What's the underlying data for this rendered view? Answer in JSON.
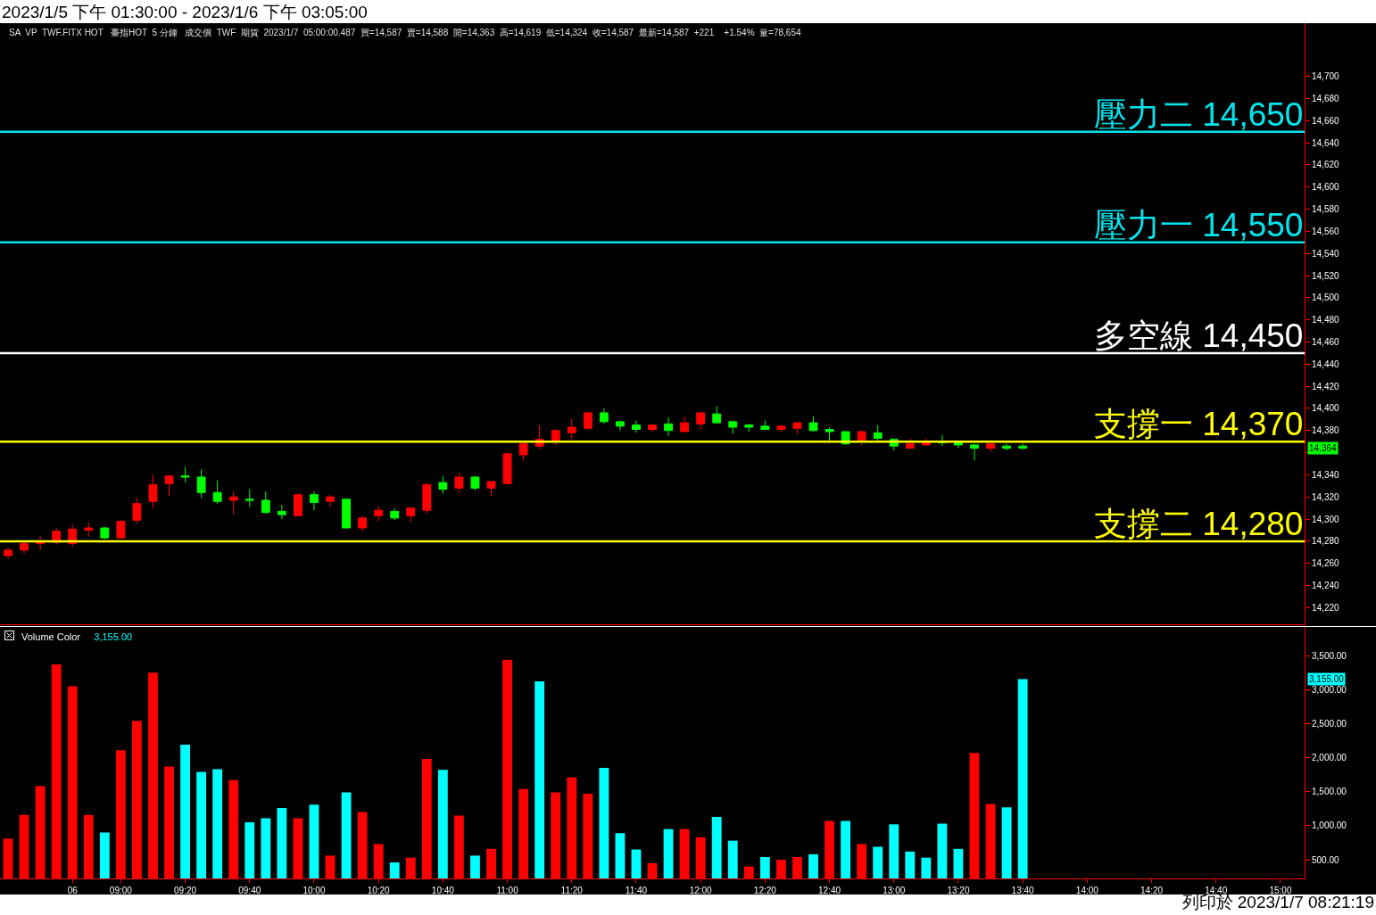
{
  "chart_data": [
    {
      "type": "candlestick",
      "title": "2023/1/5 下午 01:30:00 - 2023/1/6 下午 03:05:00",
      "categories": [
        null,
        null,
        null,
        null,
        null,
        null,
        null,
        null,
        null,
        null,
        null,
        null,
        null,
        null,
        null,
        null,
        null,
        null,
        null,
        null,
        null,
        null,
        null,
        null,
        null,
        null,
        null,
        null,
        null,
        null,
        null,
        null,
        null,
        null,
        null,
        null,
        null,
        null,
        null,
        null,
        null,
        null,
        null,
        null,
        null,
        null,
        null,
        null,
        null,
        null,
        null,
        null,
        null,
        null,
        null,
        null,
        null,
        null,
        null,
        null,
        null,
        null,
        null,
        null,
        null,
        null,
        null,
        null,
        null,
        null,
        null,
        null,
        null,
        null,
        null,
        null,
        null,
        null,
        null,
        null,
        null
      ],
      "ohlc": [
        [
          14267,
          14274,
          14264,
          14272
        ],
        [
          14272,
          14278,
          14269,
          14278
        ],
        [
          14278,
          14285,
          14272,
          14279
        ],
        [
          14279,
          14292,
          14277,
          14289
        ],
        [
          14278,
          14295,
          14275,
          14291
        ],
        [
          14290,
          14297,
          14284,
          14292
        ],
        [
          14292,
          14293,
          14282,
          14283
        ],
        [
          14283,
          14299,
          14283,
          14298
        ],
        [
          14299,
          14319,
          14296,
          14314
        ],
        [
          14316,
          14340,
          14310,
          14331
        ],
        [
          14332,
          14339,
          14321,
          14339
        ],
        [
          14339,
          14347,
          14333,
          14338
        ],
        [
          14338,
          14345,
          14319,
          14324
        ],
        [
          14324,
          14335,
          14314,
          14316
        ],
        [
          14317,
          14325,
          14304,
          14320
        ],
        [
          14318,
          14327,
          14311,
          14317
        ],
        [
          14317,
          14325,
          14305,
          14306
        ],
        [
          14307,
          14313,
          14300,
          14304
        ],
        [
          14303,
          14323,
          14303,
          14322
        ],
        [
          14322,
          14325,
          14308,
          14315
        ],
        [
          14316,
          14322,
          14311,
          14320
        ],
        [
          14318,
          14318,
          14292,
          14292
        ],
        [
          14292,
          14303,
          14289,
          14301
        ],
        [
          14303,
          14312,
          14298,
          14308
        ],
        [
          14307,
          14310,
          14299,
          14301
        ],
        [
          14303,
          14310,
          14297,
          14310
        ],
        [
          14308,
          14333,
          14305,
          14331
        ],
        [
          14333,
          14339,
          14323,
          14327
        ],
        [
          14328,
          14342,
          14324,
          14338
        ],
        [
          14338,
          14339,
          14326,
          14328
        ],
        [
          14328,
          14334,
          14321,
          14334
        ],
        [
          14332,
          14360,
          14332,
          14359
        ],
        [
          14358,
          14368,
          14353,
          14368
        ],
        [
          14366,
          14385,
          14363,
          14372
        ],
        [
          14370,
          14381,
          14367,
          14380
        ],
        [
          14378,
          14391,
          14372,
          14383
        ],
        [
          14382,
          14396,
          14381,
          14396
        ],
        [
          14396,
          14400,
          14386,
          14388
        ],
        [
          14388,
          14389,
          14380,
          14384
        ],
        [
          14385,
          14389,
          14378,
          14381
        ],
        [
          14381,
          14386,
          14379,
          14385
        ],
        [
          14386,
          14392,
          14375,
          14380
        ],
        [
          14379,
          14393,
          14379,
          14387
        ],
        [
          14386,
          14396,
          14381,
          14396
        ],
        [
          14395,
          14402,
          14386,
          14387
        ],
        [
          14388,
          14389,
          14377,
          14383
        ],
        [
          14385,
          14386,
          14379,
          14383
        ],
        [
          14384,
          14389,
          14381,
          14381
        ],
        [
          14381,
          14385,
          14379,
          14384
        ],
        [
          14382,
          14387,
          14377,
          14387
        ],
        [
          14387,
          14393,
          14379,
          14380
        ],
        [
          14381,
          14383,
          14371,
          14379
        ],
        [
          14379,
          14379,
          14367,
          14368
        ],
        [
          14371,
          14380,
          14367,
          14379
        ],
        [
          14378,
          14385,
          14371,
          14373
        ],
        [
          14372,
          14373,
          14362,
          14366
        ],
        [
          14364,
          14373,
          14364,
          14368
        ],
        [
          14367,
          14373,
          14366,
          14369
        ],
        [
          14370,
          14376,
          14366,
          14369
        ],
        [
          14369,
          14370,
          14364,
          14367
        ],
        [
          14367,
          14368,
          14353,
          14364
        ],
        [
          14364,
          14368,
          14361,
          14368
        ],
        [
          14366,
          14368,
          14362,
          14364
        ],
        [
          14366,
          14368,
          14363,
          14364
        ],
        null,
        null,
        null,
        null,
        null,
        null,
        null,
        null,
        null,
        null,
        null,
        null,
        null,
        null,
        null,
        null,
        null
      ],
      "colors": [
        "#ff0000",
        "#ff0000",
        "#ff0000",
        "#ff0000",
        "#ff0000",
        "#ff0000",
        "#00ff00",
        "#ff0000",
        "#ff0000",
        "#ff0000",
        "#ff0000",
        "#00ff00",
        "#00ff00",
        "#00ff00",
        "#ff0000",
        "#00ff00",
        "#00ff00",
        "#00ff00",
        "#ff0000",
        "#00ff00",
        "#ff0000",
        "#00ff00",
        "#ff0000",
        "#ff0000",
        "#00ff00",
        "#ff0000",
        "#ff0000",
        "#00ff00",
        "#ff0000",
        "#00ff00",
        "#ff0000",
        "#ff0000",
        "#ff0000",
        "#ff0000",
        "#ff0000",
        "#ff0000",
        "#ff0000",
        "#00ff00",
        "#00ff00",
        "#00ff00",
        "#ff0000",
        "#00ff00",
        "#ff0000",
        "#ff0000",
        "#00ff00",
        "#00ff00",
        "#00ff00",
        "#00ff00",
        "#ff0000",
        "#ff0000",
        "#00ff00",
        "#00ff00",
        "#00ff00",
        "#ff0000",
        "#00ff00",
        "#00ff00",
        "#ff0000",
        "#ff0000",
        "#00ff00",
        "#00ff00",
        "#00ff00",
        "#ff0000",
        "#00ff00",
        "#00ff00",
        null,
        null,
        null,
        null,
        null,
        null,
        null,
        null,
        null,
        null,
        null,
        null,
        null,
        null,
        null,
        null,
        null
      ],
      "ylim": [
        14205,
        14748
      ],
      "yticks": [
        {
          "value": 14220,
          "label": "14,220"
        },
        {
          "value": 14240,
          "label": "14,240"
        },
        {
          "value": 14260,
          "label": "14,260"
        },
        {
          "value": 14280,
          "label": "14,280"
        },
        {
          "value": 14300,
          "label": "14,300"
        },
        {
          "value": 14320,
          "label": "14,320"
        },
        {
          "value": 14340,
          "label": "14,340"
        },
        {
          "value": 14360,
          "label": null
        },
        {
          "value": 14380,
          "label": "14,380"
        },
        {
          "value": 14400,
          "label": "14,400"
        },
        {
          "value": 14420,
          "label": "14,420"
        },
        {
          "value": 14440,
          "label": "14,440"
        },
        {
          "value": 14460,
          "label": "14,460"
        },
        {
          "value": 14480,
          "label": "14,480"
        },
        {
          "value": 14500,
          "label": "14,500"
        },
        {
          "value": 14520,
          "label": "14,520"
        },
        {
          "value": 14540,
          "label": "14,540"
        },
        {
          "value": 14560,
          "label": "14,560"
        },
        {
          "value": 14580,
          "label": "14,580"
        },
        {
          "value": 14600,
          "label": "14,600"
        },
        {
          "value": 14620,
          "label": "14,620"
        },
        {
          "value": 14640,
          "label": "14,640"
        },
        {
          "value": 14660,
          "label": "14,660"
        },
        {
          "value": 14680,
          "label": "14,680"
        },
        {
          "value": 14700,
          "label": "14,700"
        }
      ],
      "tick_labels": "y",
      "ref_lines": [
        {
          "axis": "y",
          "value": 14650,
          "label": "壓力二 14,650",
          "color": "#00e5ee"
        },
        {
          "axis": "y",
          "value": 14550,
          "label": "壓力一 14,550",
          "color": "#00e5ee"
        },
        {
          "axis": "y",
          "value": 14450,
          "label": "多空線 14,450",
          "color": "#ffffff"
        },
        {
          "axis": "y",
          "value": 14370,
          "label": "支撐一 14,370",
          "color": "#ffff00"
        },
        {
          "axis": "y",
          "value": 14280,
          "label": "支撐二 14,280",
          "color": "#ffff00"
        }
      ],
      "annotations": [
        "SA  VP  TWF.FITX HOT   臺指HOT  5 分鐘   成交價  TWF  期貨  2023/1/7  05:00:00.487  買=14,587  賣=14,588  開=14,363  高=14,619  低=14,324  收=14,587  最新=14,587  +221    +1.54%  量=78,654",
        "14,364"
      ]
    },
    {
      "type": "bar",
      "title": "Volume Color",
      "categories": [
        null,
        null,
        null,
        null,
        "06",
        null,
        null,
        "09:00",
        null,
        null,
        null,
        "09:20",
        null,
        null,
        null,
        "09:40",
        null,
        null,
        null,
        "10:00",
        null,
        null,
        null,
        "10:20",
        null,
        null,
        null,
        "10:40",
        null,
        null,
        null,
        "11:00",
        null,
        null,
        null,
        "11:20",
        null,
        null,
        null,
        "11:40",
        null,
        null,
        null,
        "12:00",
        null,
        null,
        null,
        "12:20",
        null,
        null,
        null,
        "12:40",
        null,
        null,
        null,
        "13:00",
        null,
        null,
        null,
        "13:20",
        null,
        null,
        null,
        "13:40",
        null,
        null,
        null,
        "14:00",
        null,
        null,
        null,
        "14:20",
        null,
        null,
        null,
        "14:40",
        null,
        null,
        null,
        "15:00",
        null
      ],
      "values": [
        810,
        1160,
        1580,
        3370,
        3050,
        1160,
        900,
        2110,
        2540,
        3250,
        1870,
        2190,
        1790,
        1830,
        1670,
        1050,
        1110,
        1260,
        1110,
        1310,
        560,
        1490,
        1200,
        730,
        460,
        530,
        1980,
        1820,
        1150,
        560,
        660,
        3440,
        1540,
        3120,
        1490,
        1710,
        1470,
        1850,
        890,
        650,
        450,
        950,
        950,
        830,
        1130,
        780,
        400,
        540,
        500,
        540,
        580,
        1070,
        1070,
        730,
        690,
        1020,
        620,
        530,
        1030,
        660,
        2070,
        1320,
        1270,
        3155,
        null,
        null,
        null,
        null,
        null,
        null,
        null,
        null,
        null,
        null,
        null,
        null,
        null,
        null,
        null,
        null,
        null
      ],
      "colors": [
        "#ff0000",
        "#ff0000",
        "#ff0000",
        "#ff0000",
        "#ff0000",
        "#ff0000",
        "#00ffff",
        "#ff0000",
        "#ff0000",
        "#ff0000",
        "#ff0000",
        "#00ffff",
        "#00ffff",
        "#00ffff",
        "#ff0000",
        "#00ffff",
        "#00ffff",
        "#00ffff",
        "#ff0000",
        "#00ffff",
        "#ff0000",
        "#00ffff",
        "#ff0000",
        "#ff0000",
        "#00ffff",
        "#ff0000",
        "#ff0000",
        "#00ffff",
        "#ff0000",
        "#00ffff",
        "#ff0000",
        "#ff0000",
        "#ff0000",
        "#00ffff",
        "#ff0000",
        "#ff0000",
        "#ff0000",
        "#00ffff",
        "#00ffff",
        "#00ffff",
        "#ff0000",
        "#00ffff",
        "#ff0000",
        "#ff0000",
        "#00ffff",
        "#00ffff",
        "#ff0000",
        "#00ffff",
        "#ff0000",
        "#ff0000",
        "#00ffff",
        "#ff0000",
        "#00ffff",
        "#ff0000",
        "#00ffff",
        "#00ffff",
        "#00ffff",
        "#00ffff",
        "#00ffff",
        "#00ffff",
        "#ff0000",
        "#ff0000",
        "#00ffff",
        "#00ffff",
        null,
        null,
        null,
        null,
        null,
        null,
        null,
        null,
        null,
        null,
        null,
        null,
        null,
        null,
        null,
        null,
        null
      ],
      "ylim": [
        225,
        3920
      ],
      "yticks": [
        {
          "value": 500,
          "label": "500.00"
        },
        {
          "value": 1000,
          "label": "1,000.00"
        },
        {
          "value": 1500,
          "label": "1,500.00"
        },
        {
          "value": 2000,
          "label": "2,000.00"
        },
        {
          "value": 2500,
          "label": "2,500.00"
        },
        {
          "value": 3000,
          "label": "3,000.00"
        },
        {
          "value": 3500,
          "label": "3,500.00"
        }
      ],
      "annotations": [
        "3,155.00",
        "列印於 2023/1/7 08:21:19",
        {
          "text": "3,155.00",
          "y": 3155
        }
      ]
    }
  ]
}
